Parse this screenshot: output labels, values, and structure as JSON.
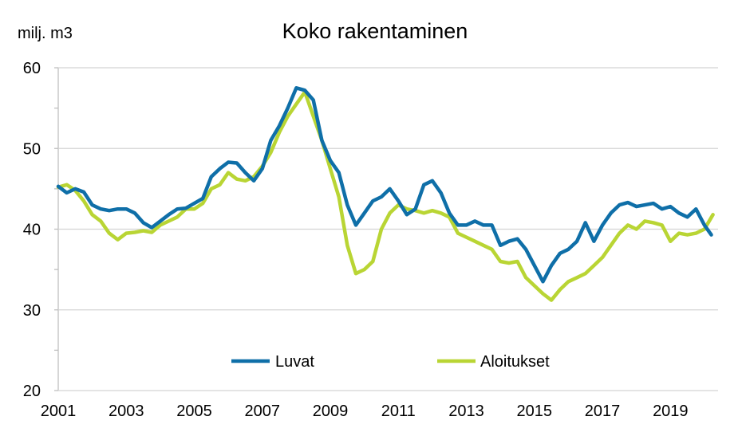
{
  "chart_data": {
    "type": "line",
    "title": "Koko rakentaminen",
    "ylabel": "milj. m3",
    "xlabel": "",
    "xlim": [
      2001,
      2020.4
    ],
    "ylim": [
      20,
      60
    ],
    "yticks": [
      20,
      30,
      40,
      50,
      60
    ],
    "xticks": [
      2001,
      2003,
      2005,
      2007,
      2009,
      2011,
      2013,
      2015,
      2017,
      2019
    ],
    "grid": true,
    "legend_position": "bottom",
    "series": [
      {
        "name": "Luvat",
        "color": "#0f6fa8",
        "x": [
          2001.0,
          2001.25,
          2001.5,
          2001.75,
          2002.0,
          2002.25,
          2002.5,
          2002.75,
          2003.0,
          2003.25,
          2003.5,
          2003.75,
          2004.0,
          2004.25,
          2004.5,
          2004.75,
          2005.0,
          2005.25,
          2005.5,
          2005.75,
          2006.0,
          2006.25,
          2006.5,
          2006.75,
          2007.0,
          2007.25,
          2007.5,
          2007.75,
          2008.0,
          2008.25,
          2008.5,
          2008.75,
          2009.0,
          2009.25,
          2009.5,
          2009.75,
          2010.0,
          2010.25,
          2010.5,
          2010.75,
          2011.0,
          2011.25,
          2011.5,
          2011.75,
          2012.0,
          2012.25,
          2012.5,
          2012.75,
          2013.0,
          2013.25,
          2013.5,
          2013.75,
          2014.0,
          2014.25,
          2014.5,
          2014.75,
          2015.0,
          2015.25,
          2015.5,
          2015.75,
          2016.0,
          2016.25,
          2016.5,
          2016.75,
          2017.0,
          2017.25,
          2017.5,
          2017.75,
          2018.0,
          2018.25,
          2018.5,
          2018.75,
          2019.0,
          2019.25,
          2019.5,
          2019.75,
          2020.0,
          2020.2
        ],
        "values": [
          45.3,
          44.5,
          45.0,
          44.6,
          43.0,
          42.5,
          42.3,
          42.5,
          42.5,
          42.0,
          40.8,
          40.2,
          41.0,
          41.8,
          42.5,
          42.6,
          43.2,
          43.8,
          46.5,
          47.5,
          48.3,
          48.2,
          47.0,
          46.0,
          47.5,
          51.0,
          52.8,
          55.0,
          57.5,
          57.2,
          56.0,
          51.0,
          48.5,
          47.0,
          43.0,
          40.5,
          42.0,
          43.5,
          44.0,
          45.0,
          43.5,
          41.8,
          42.5,
          45.5,
          46.0,
          44.5,
          42.0,
          40.5,
          40.5,
          41.0,
          40.5,
          40.5,
          38.0,
          38.5,
          38.8,
          37.5,
          35.5,
          33.5,
          35.5,
          37.0,
          37.5,
          38.5,
          40.8,
          38.5,
          40.5,
          42.0,
          43.0,
          43.3,
          42.8,
          43.0,
          43.2,
          42.5,
          42.8,
          42.0,
          41.5,
          42.5,
          40.5,
          39.3
        ]
      },
      {
        "name": "Aloitukset",
        "color": "#b9d534",
        "x": [
          2001.0,
          2001.25,
          2001.5,
          2001.75,
          2002.0,
          2002.25,
          2002.5,
          2002.75,
          2003.0,
          2003.25,
          2003.5,
          2003.75,
          2004.0,
          2004.25,
          2004.5,
          2004.75,
          2005.0,
          2005.25,
          2005.5,
          2005.75,
          2006.0,
          2006.25,
          2006.5,
          2006.75,
          2007.0,
          2007.25,
          2007.5,
          2007.75,
          2008.0,
          2008.25,
          2008.5,
          2008.75,
          2009.0,
          2009.25,
          2009.5,
          2009.75,
          2010.0,
          2010.25,
          2010.5,
          2010.75,
          2011.0,
          2011.25,
          2011.5,
          2011.75,
          2012.0,
          2012.25,
          2012.5,
          2012.75,
          2013.0,
          2013.25,
          2013.5,
          2013.75,
          2014.0,
          2014.25,
          2014.5,
          2014.75,
          2015.0,
          2015.25,
          2015.5,
          2015.75,
          2016.0,
          2016.25,
          2016.5,
          2016.75,
          2017.0,
          2017.25,
          2017.5,
          2017.75,
          2018.0,
          2018.25,
          2018.5,
          2018.75,
          2019.0,
          2019.25,
          2019.5,
          2019.75,
          2020.0,
          2020.25
        ],
        "values": [
          45.2,
          45.5,
          44.8,
          43.5,
          41.8,
          41.0,
          39.5,
          38.7,
          39.5,
          39.6,
          39.8,
          39.6,
          40.5,
          41.0,
          41.5,
          42.5,
          42.5,
          43.2,
          45.0,
          45.5,
          47.0,
          46.2,
          46.0,
          46.5,
          47.8,
          49.5,
          52.0,
          54.0,
          55.5,
          57.0,
          54.0,
          51.0,
          47.5,
          44.0,
          38.0,
          34.5,
          35.0,
          36.0,
          40.0,
          42.0,
          43.0,
          42.5,
          42.3,
          42.0,
          42.3,
          42.0,
          41.5,
          39.5,
          39.0,
          38.5,
          38.0,
          37.5,
          36.0,
          35.8,
          36.0,
          34.0,
          33.0,
          32.0,
          31.2,
          32.5,
          33.5,
          34.0,
          34.5,
          35.5,
          36.5,
          38.0,
          39.5,
          40.5,
          40.0,
          41.0,
          40.8,
          40.5,
          38.5,
          39.5,
          39.3,
          39.5,
          40.0,
          41.8
        ]
      }
    ]
  }
}
